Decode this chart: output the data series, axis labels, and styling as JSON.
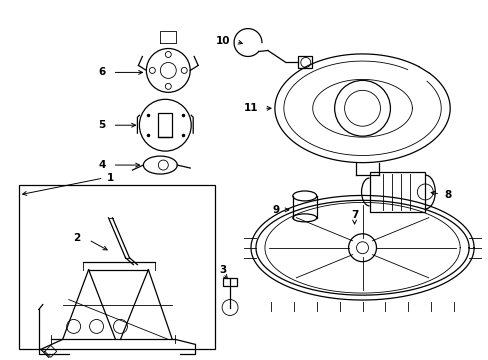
{
  "background_color": "#ffffff",
  "line_color": "#000000",
  "fig_width": 4.89,
  "fig_height": 3.6,
  "dpi": 100,
  "lw": 0.9,
  "tlw": 0.6
}
